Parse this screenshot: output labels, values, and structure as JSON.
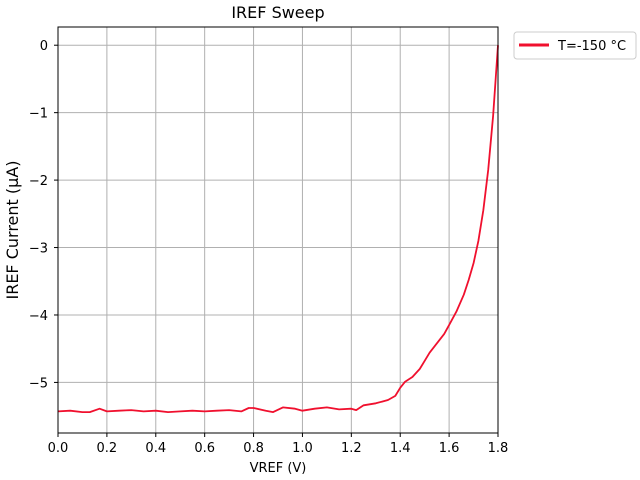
{
  "chart_data": {
    "type": "line",
    "title": "IREF Sweep",
    "xlabel": "VREF (V)",
    "ylabel": "IREF Current (µA)",
    "xlim": [
      0.0,
      1.8
    ],
    "ylim": [
      -5.75,
      0.27
    ],
    "xticks": [
      0.0,
      0.2,
      0.4,
      0.6,
      0.8,
      1.0,
      1.2,
      1.4,
      1.6,
      1.8
    ],
    "xtick_labels": [
      "0.0",
      "0.2",
      "0.4",
      "0.6",
      "0.8",
      "1.0",
      "1.2",
      "1.4",
      "1.6",
      "1.8"
    ],
    "yticks": [
      -5,
      -4,
      -3,
      -2,
      -1,
      0
    ],
    "ytick_labels": [
      "−5",
      "−4",
      "−3",
      "−2",
      "−1",
      "0"
    ],
    "grid": true,
    "legend_position": "outside-top-right",
    "series": [
      {
        "name": "T=-150 °C",
        "color": "#f0102e",
        "x": [
          0.0,
          0.05,
          0.1,
          0.13,
          0.17,
          0.2,
          0.25,
          0.3,
          0.35,
          0.4,
          0.45,
          0.5,
          0.55,
          0.6,
          0.65,
          0.7,
          0.75,
          0.78,
          0.8,
          0.85,
          0.88,
          0.92,
          0.97,
          1.0,
          1.05,
          1.1,
          1.15,
          1.2,
          1.22,
          1.25,
          1.3,
          1.35,
          1.38,
          1.4,
          1.42,
          1.45,
          1.48,
          1.5,
          1.52,
          1.55,
          1.58,
          1.6,
          1.63,
          1.66,
          1.68,
          1.7,
          1.72,
          1.74,
          1.76,
          1.78,
          1.8
        ],
        "y": [
          -5.43,
          -5.42,
          -5.44,
          -5.44,
          -5.39,
          -5.43,
          -5.42,
          -5.41,
          -5.43,
          -5.42,
          -5.44,
          -5.43,
          -5.42,
          -5.43,
          -5.42,
          -5.41,
          -5.43,
          -5.38,
          -5.38,
          -5.42,
          -5.44,
          -5.37,
          -5.39,
          -5.42,
          -5.39,
          -5.37,
          -5.4,
          -5.39,
          -5.41,
          -5.34,
          -5.31,
          -5.26,
          -5.2,
          -5.08,
          -4.99,
          -4.92,
          -4.8,
          -4.68,
          -4.56,
          -4.42,
          -4.28,
          -4.15,
          -3.95,
          -3.7,
          -3.48,
          -3.23,
          -2.9,
          -2.45,
          -1.85,
          -1.05,
          0.0
        ]
      }
    ]
  }
}
